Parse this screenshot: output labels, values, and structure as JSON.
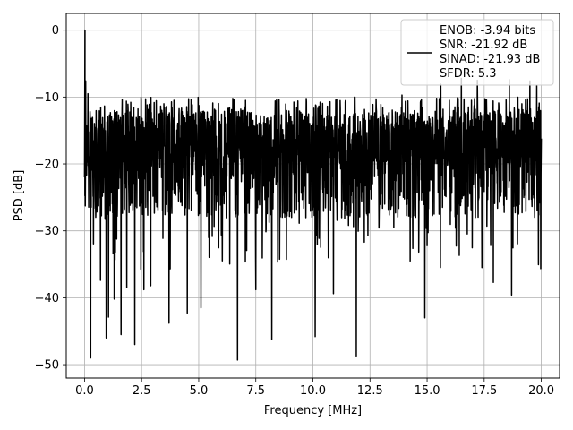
{
  "chart_data": {
    "type": "line",
    "title": "",
    "xlabel": "Frequency [MHz]",
    "ylabel": "PSD [dB]",
    "xlim": [
      -0.8,
      20.8
    ],
    "ylim": [
      -52,
      2.5
    ],
    "xticks": [
      0.0,
      2.5,
      5.0,
      7.5,
      10.0,
      12.5,
      15.0,
      17.5,
      20.0
    ],
    "xtick_labels": [
      "0.0",
      "2.5",
      "5.0",
      "7.5",
      "10.0",
      "12.5",
      "15.0",
      "17.5",
      "20.0"
    ],
    "yticks": [
      0,
      -10,
      -20,
      -30,
      -40,
      -50
    ],
    "ytick_labels": [
      "0",
      "−10",
      "−20",
      "−30",
      "−40",
      "−50"
    ],
    "grid": true,
    "legend_position": "top-right",
    "series": [
      {
        "name": "ENOB: -3.94 bits\nSNR: -21.92 dB\nSINAD: -21.93 dB\nSFDR: 5.3",
        "legend_lines": [
          "ENOB: -3.94 bits",
          "SNR: -21.92 dB",
          "SINAD: -21.93 dB",
          "SFDR: 5.3"
        ],
        "color": "#000000",
        "description_stats": {
          "x_start": 0.0,
          "x_end": 20.0,
          "peak": [
            0.02,
            0.0
          ],
          "typical_band_db": [
            -28,
            -12
          ]
        },
        "dips": [
          [
            0.27,
            -49.0
          ],
          [
            0.7,
            -37.4
          ],
          [
            0.95,
            -46.0
          ],
          [
            1.05,
            -42.9
          ],
          [
            1.3,
            -40.2
          ],
          [
            1.6,
            -45.5
          ],
          [
            1.85,
            -38.5
          ],
          [
            2.2,
            -47.0
          ],
          [
            2.6,
            -38.8
          ],
          [
            2.9,
            -38.2
          ],
          [
            3.7,
            -43.8
          ],
          [
            4.5,
            -42.3
          ],
          [
            5.1,
            -41.5
          ],
          [
            6.7,
            -49.3
          ],
          [
            7.5,
            -38.8
          ],
          [
            8.2,
            -46.2
          ],
          [
            10.1,
            -45.8
          ],
          [
            10.9,
            -39.4
          ],
          [
            11.9,
            -48.7
          ],
          [
            13.9,
            -42.7
          ],
          [
            14.9,
            -43.0
          ],
          [
            17.9,
            -37.7
          ],
          [
            18.7,
            -39.6
          ]
        ],
        "upper_spikes": [
          [
            0.05,
            -7.6
          ],
          [
            0.15,
            -9.5
          ],
          [
            0.3,
            -13.2
          ],
          [
            16.5,
            -7.2
          ],
          [
            17.2,
            -7.5
          ],
          [
            18.6,
            -7.4
          ],
          [
            19.5,
            -7.6
          ],
          [
            19.8,
            -8.3
          ],
          [
            15.6,
            -8.1
          ],
          [
            13.9,
            -9.7
          ]
        ]
      }
    ]
  }
}
